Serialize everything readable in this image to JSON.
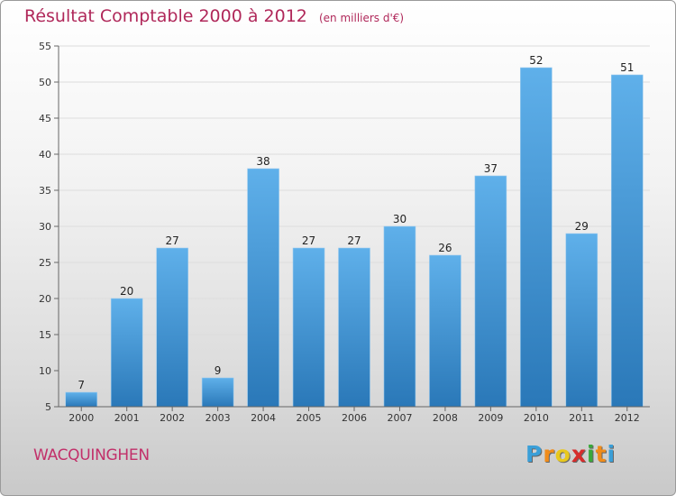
{
  "title": "Résultat Comptable 2000 à 2012",
  "subtitle": "(en milliers d'€)",
  "commune": "WACQUINGHEN",
  "logo": {
    "letters": [
      "P",
      "r",
      "o",
      "x",
      "i",
      "t",
      "i"
    ],
    "colors": [
      "#3a9fd8",
      "#f08c1a",
      "#e8c81e",
      "#d62c2c",
      "#3aa83a",
      "#f08c1a",
      "#3a9fd8"
    ]
  },
  "colors": {
    "bar_light": "#5fb0ea",
    "bar_dark": "#2a78b8",
    "title": "#b0285a",
    "axis": "#666666",
    "grid": "#dddddd"
  },
  "chart_data": {
    "type": "bar",
    "categories": [
      "2000",
      "2001",
      "2002",
      "2003",
      "2004",
      "2005",
      "2006",
      "2007",
      "2008",
      "2009",
      "2010",
      "2011",
      "2012"
    ],
    "values": [
      7,
      20,
      27,
      9,
      38,
      27,
      27,
      30,
      26,
      37,
      52,
      29,
      51
    ],
    "ylim": [
      5,
      55
    ],
    "yticks": [
      5,
      10,
      15,
      20,
      25,
      30,
      35,
      40,
      45,
      50,
      55
    ],
    "grid": true,
    "data_labels": true
  }
}
